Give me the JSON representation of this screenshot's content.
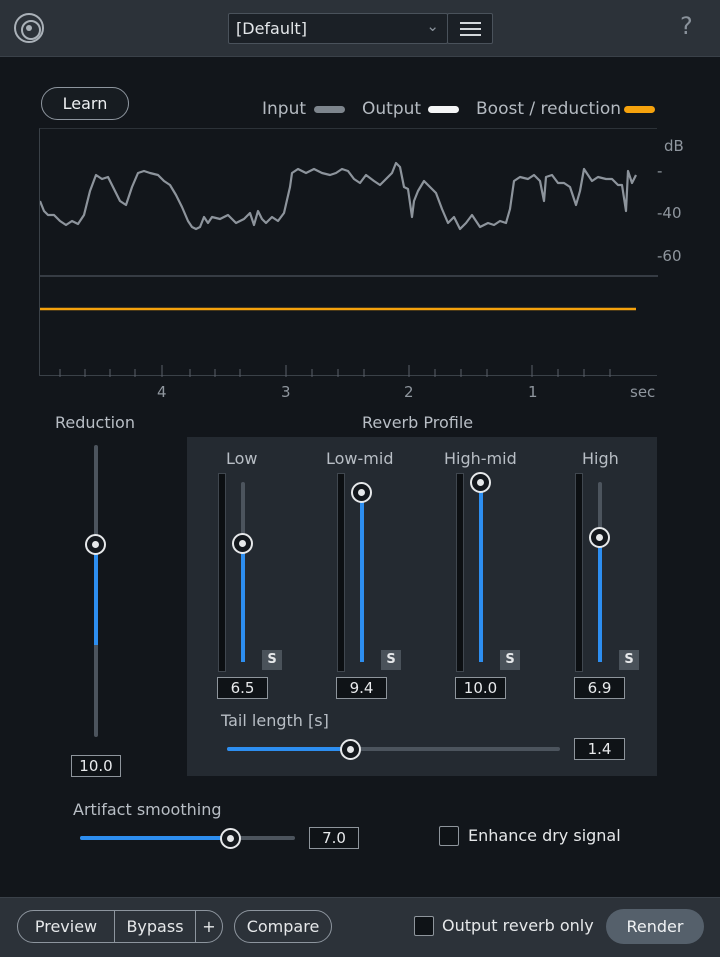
{
  "header": {
    "preset": "[Default]",
    "help": "?"
  },
  "learn": "Learn",
  "legend": {
    "input": "Input",
    "output": "Output",
    "boost": "Boost / reduction",
    "colors": {
      "input": "#7d858d",
      "output": "#f4f5f6",
      "boost": "#f5a20d"
    }
  },
  "graph": {
    "db_labels": [
      "dB",
      "-",
      "-40",
      "-60"
    ],
    "time_labels": [
      "4",
      "3",
      "2",
      "1",
      "sec"
    ]
  },
  "reduction": {
    "label": "Reduction",
    "value": "10.0",
    "level": 0.34
  },
  "reverb_profile": {
    "title": "Reverb Profile",
    "bands": [
      {
        "label": "Low",
        "value": "6.5",
        "solo": "S",
        "level": 0.65
      },
      {
        "label": "Low-mid",
        "value": "9.4",
        "solo": "S",
        "level": 0.94
      },
      {
        "label": "High-mid",
        "value": "10.0",
        "solo": "S",
        "level": 1.0
      },
      {
        "label": "High",
        "value": "6.9",
        "solo": "S",
        "level": 0.69
      }
    ],
    "tail_length": {
      "label": "Tail length [s]",
      "value": "1.4",
      "level": 0.37
    }
  },
  "artifact_smoothing": {
    "label": "Artifact smoothing",
    "value": "7.0",
    "level": 0.7
  },
  "enhance_dry": {
    "label": "Enhance dry signal",
    "checked": false
  },
  "bottom": {
    "preview": "Preview",
    "bypass": "Bypass",
    "plus": "+",
    "compare": "Compare",
    "output_reverb_only": "Output reverb only",
    "render": "Render"
  },
  "accent": "#2d8ef0"
}
